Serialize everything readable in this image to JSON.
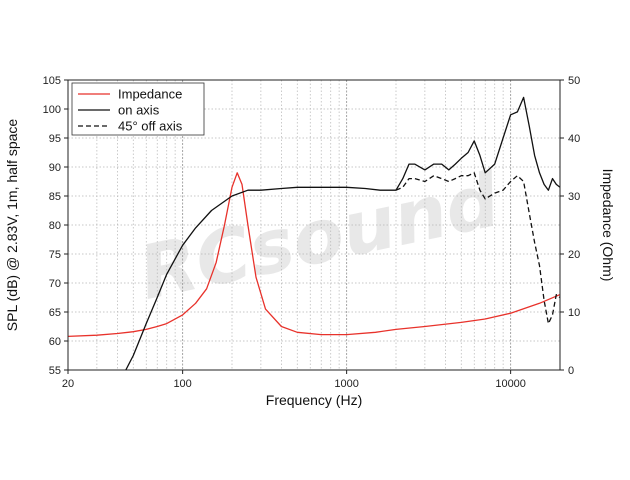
{
  "chart_data": {
    "type": "line",
    "xlabel": "Frequency (Hz)",
    "ylabel_left": "SPL (dB) @ 2.83V, 1m, half space",
    "ylabel_right": "Impedance (Ohm)",
    "x_scale": "log",
    "xlim": [
      20,
      20000
    ],
    "ylim_left": [
      55,
      105
    ],
    "ylim_right": [
      0,
      50
    ],
    "x_ticks": [
      "20",
      "100",
      "1000",
      "10000"
    ],
    "y_ticks_left": [
      "55",
      "60",
      "65",
      "70",
      "75",
      "80",
      "85",
      "90",
      "95",
      "100",
      "105"
    ],
    "y_ticks_right": [
      "0",
      "10",
      "20",
      "30",
      "40",
      "50"
    ],
    "grid": true,
    "legend_position": "top-left",
    "watermark": "RCsound",
    "colors": {
      "impedance": "#e8322b",
      "on_axis": "#111111",
      "off_axis": "#111111"
    },
    "series": [
      {
        "name": "Impedance",
        "axis": "right",
        "style": "solid",
        "x": [
          20,
          30,
          40,
          50,
          60,
          70,
          80,
          100,
          120,
          140,
          160,
          180,
          200,
          215,
          230,
          250,
          280,
          320,
          400,
          500,
          700,
          1000,
          1500,
          2000,
          3000,
          5000,
          7000,
          10000,
          15000,
          20000
        ],
        "values": [
          5.8,
          6.0,
          6.3,
          6.6,
          7.0,
          7.5,
          8.0,
          9.5,
          11.5,
          14.0,
          18.5,
          25.0,
          31.5,
          34.0,
          32.0,
          25.0,
          16.0,
          10.5,
          7.5,
          6.5,
          6.1,
          6.1,
          6.5,
          7.0,
          7.5,
          8.2,
          8.8,
          9.8,
          11.5,
          13.0
        ]
      },
      {
        "name": "on axis",
        "axis": "left",
        "style": "solid",
        "x": [
          45,
          50,
          60,
          70,
          80,
          100,
          120,
          150,
          200,
          250,
          300,
          400,
          500,
          700,
          1000,
          1300,
          1600,
          2000,
          2200,
          2400,
          2600,
          3000,
          3400,
          3800,
          4200,
          4600,
          5000,
          5500,
          6000,
          6500,
          7000,
          8000,
          9000,
          10000,
          11000,
          12000,
          13000,
          14000,
          15000,
          16000,
          17000,
          18000,
          19000,
          20000
        ],
        "values": [
          55,
          57.5,
          63,
          67.5,
          71.5,
          76.5,
          79.5,
          82.5,
          85,
          86,
          86,
          86.3,
          86.5,
          86.5,
          86.5,
          86.3,
          86,
          86,
          88,
          90.5,
          90.5,
          89.5,
          90.5,
          90.5,
          89.5,
          90.5,
          91.5,
          92.5,
          94.5,
          92,
          89,
          90.5,
          95,
          99,
          99.5,
          102,
          97,
          92,
          89,
          87,
          86,
          88,
          87,
          86.5
        ]
      },
      {
        "name": "45° off axis",
        "axis": "left",
        "style": "dashed",
        "x": [
          2000,
          2200,
          2400,
          2600,
          3000,
          3400,
          3800,
          4200,
          4600,
          5000,
          5500,
          6000,
          6500,
          7000,
          8000,
          9000,
          10000,
          11000,
          12000,
          13000,
          14000,
          15000,
          16000,
          17000,
          18000,
          19000,
          20000
        ],
        "values": [
          86,
          86.5,
          88,
          88,
          87.5,
          88.5,
          88,
          87.5,
          88,
          88.5,
          88.5,
          89,
          86,
          84.5,
          85.5,
          86,
          87.5,
          88.5,
          87.5,
          82,
          77,
          73,
          67,
          63,
          64.5,
          68,
          67.5
        ]
      }
    ]
  }
}
